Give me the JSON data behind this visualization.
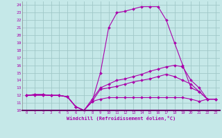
{
  "xlabel": "Windchill (Refroidissement éolien,°C)",
  "bg_color": "#c5e8e8",
  "grid_color": "#a0c8c8",
  "line_color": "#aa00aa",
  "xlim": [
    -0.5,
    23.5
  ],
  "ylim": [
    10,
    24.5
  ],
  "xticks": [
    0,
    1,
    2,
    3,
    4,
    5,
    6,
    7,
    8,
    9,
    10,
    11,
    12,
    13,
    14,
    15,
    16,
    17,
    18,
    19,
    20,
    21,
    22,
    23
  ],
  "yticks": [
    10,
    11,
    12,
    13,
    14,
    15,
    16,
    17,
    18,
    19,
    20,
    21,
    22,
    23,
    24
  ],
  "lines": [
    [
      0,
      12,
      1,
      12.1,
      2,
      12.1,
      3,
      12,
      4,
      12,
      5,
      11.8,
      6,
      10.5,
      7,
      10,
      8,
      11.2,
      9,
      15,
      10,
      21,
      11,
      23,
      12,
      23.2,
      13,
      23.5,
      14,
      23.8,
      15,
      23.8,
      16,
      23.8,
      17,
      22,
      18,
      19,
      19,
      16,
      20,
      13,
      21,
      12.5,
      22,
      11.5,
      23,
      11.5
    ],
    [
      0,
      12,
      1,
      12.1,
      2,
      12.1,
      3,
      12,
      4,
      12,
      5,
      11.8,
      6,
      10.5,
      7,
      10,
      8,
      11.5,
      9,
      13,
      10,
      13.5,
      11,
      14,
      12,
      14.2,
      13,
      14.5,
      14,
      14.8,
      15,
      15.2,
      16,
      15.5,
      17,
      15.8,
      18,
      16,
      19,
      15.8,
      20,
      14,
      21,
      13,
      22,
      11.5,
      23,
      11.5
    ],
    [
      0,
      12,
      1,
      12.1,
      2,
      12.1,
      3,
      12,
      4,
      12,
      5,
      11.8,
      6,
      10.5,
      7,
      10,
      8,
      11.2,
      9,
      12.8,
      10,
      13,
      11,
      13.2,
      12,
      13.5,
      13,
      13.8,
      14,
      14,
      15,
      14.2,
      16,
      14.5,
      17,
      14.8,
      18,
      14.5,
      19,
      14,
      20,
      13.5,
      21,
      12.5,
      22,
      11.5,
      23,
      11.5
    ],
    [
      0,
      12,
      1,
      12,
      2,
      12,
      3,
      12,
      4,
      12,
      5,
      11.8,
      6,
      10.5,
      7,
      10,
      8,
      11.2,
      9,
      11.5,
      10,
      11.7,
      11,
      11.7,
      12,
      11.7,
      13,
      11.7,
      14,
      11.7,
      15,
      11.7,
      16,
      11.7,
      17,
      11.7,
      18,
      11.7,
      19,
      11.7,
      20,
      11.5,
      21,
      11.2,
      22,
      11.5,
      23,
      11.5
    ]
  ]
}
